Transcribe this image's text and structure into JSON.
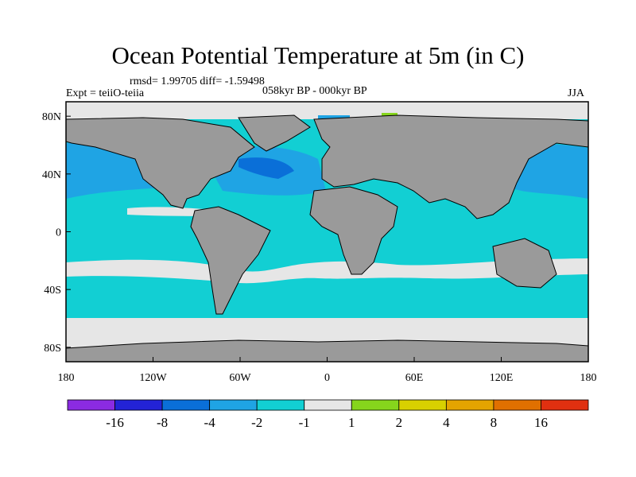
{
  "title": "Ocean Potential Temperature at 5m (in C)",
  "stats": "rmsd= 1.99705 diff= -1.59498",
  "expt": "Expt = teiiO-teiia",
  "period": "058kyr BP - 000kyr BP",
  "season": "JJA",
  "colors": {
    "land": "#9a9a9a",
    "ocean_neutral": "#e6e6e6",
    "bins": [
      "#8b2be2",
      "#2323d6",
      "#0a6fd8",
      "#1fa4e4",
      "#12cfd3",
      "#e6e6e6",
      "#86d51c",
      "#d8d000",
      "#e4a400",
      "#e07000",
      "#e03010"
    ]
  },
  "chart_data": {
    "type": "heatmap",
    "title": "Ocean Potential Temperature at 5m (in C)",
    "x_ticks": [
      "180",
      "120W",
      "60W",
      "0",
      "60E",
      "120E",
      "180"
    ],
    "y_ticks": [
      "80N",
      "40N",
      "0",
      "40S",
      "80S"
    ],
    "colorbar_labels": [
      "-16",
      "-8",
      "-4",
      "-2",
      "-1",
      "1",
      "2",
      "4",
      "8",
      "16"
    ],
    "xlim": [
      -180,
      180
    ],
    "ylim": [
      -90,
      90
    ]
  }
}
